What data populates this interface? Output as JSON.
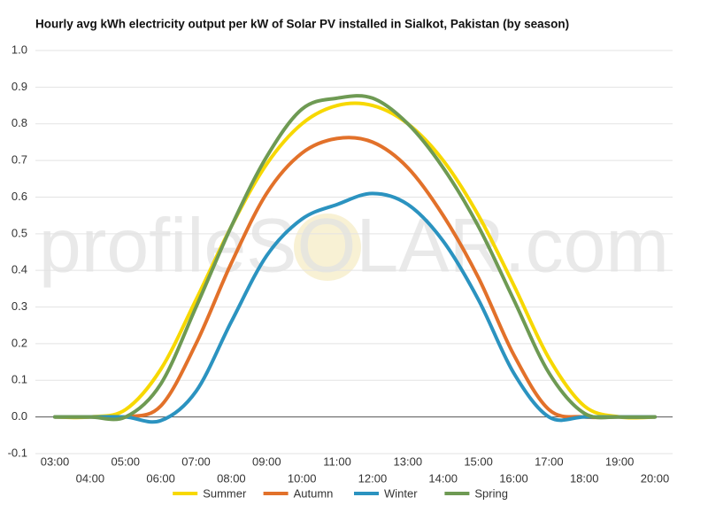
{
  "chart_data": {
    "type": "line",
    "title": "Hourly avg kWh electricity output per kW of Solar PV installed in Sialkot, Pakistan (by season)",
    "watermark": "profileSOLAR.com",
    "categories": [
      "03:00",
      "04:00",
      "05:00",
      "06:00",
      "07:00",
      "08:00",
      "09:00",
      "10:00",
      "11:00",
      "12:00",
      "13:00",
      "14:00",
      "15:00",
      "16:00",
      "17:00",
      "18:00",
      "19:00",
      "20:00"
    ],
    "series": [
      {
        "name": "Summer",
        "color": "#f7d800",
        "values": [
          0,
          0,
          0.02,
          0.13,
          0.32,
          0.52,
          0.69,
          0.8,
          0.85,
          0.85,
          0.8,
          0.7,
          0.55,
          0.36,
          0.16,
          0.03,
          0,
          0
        ]
      },
      {
        "name": "Autumn",
        "color": "#e2712a",
        "values": [
          0,
          0,
          0,
          0.03,
          0.2,
          0.42,
          0.61,
          0.72,
          0.76,
          0.75,
          0.68,
          0.55,
          0.38,
          0.17,
          0.02,
          0,
          0,
          0
        ]
      },
      {
        "name": "Winter",
        "color": "#2b93c0",
        "values": [
          0,
          0,
          0,
          -0.01,
          0.07,
          0.26,
          0.44,
          0.54,
          0.58,
          0.61,
          0.58,
          0.48,
          0.32,
          0.12,
          0,
          0,
          0,
          0
        ]
      },
      {
        "name": "Spring",
        "color": "#6e9a53",
        "values": [
          0,
          0,
          0,
          0.09,
          0.3,
          0.52,
          0.71,
          0.84,
          0.87,
          0.87,
          0.8,
          0.68,
          0.52,
          0.32,
          0.12,
          0.01,
          0,
          0
        ]
      }
    ],
    "ylim": [
      -0.1,
      1.0
    ],
    "yticks": [
      {
        "value": -0.1,
        "label": "-0.1"
      },
      {
        "value": 0,
        "label": "0.0"
      },
      0.1,
      0.2,
      0.3,
      0.4,
      0.5,
      0.6,
      0.7,
      0.8,
      0.9,
      {
        "value": 1,
        "label": "1.0"
      }
    ],
    "grid": true
  }
}
